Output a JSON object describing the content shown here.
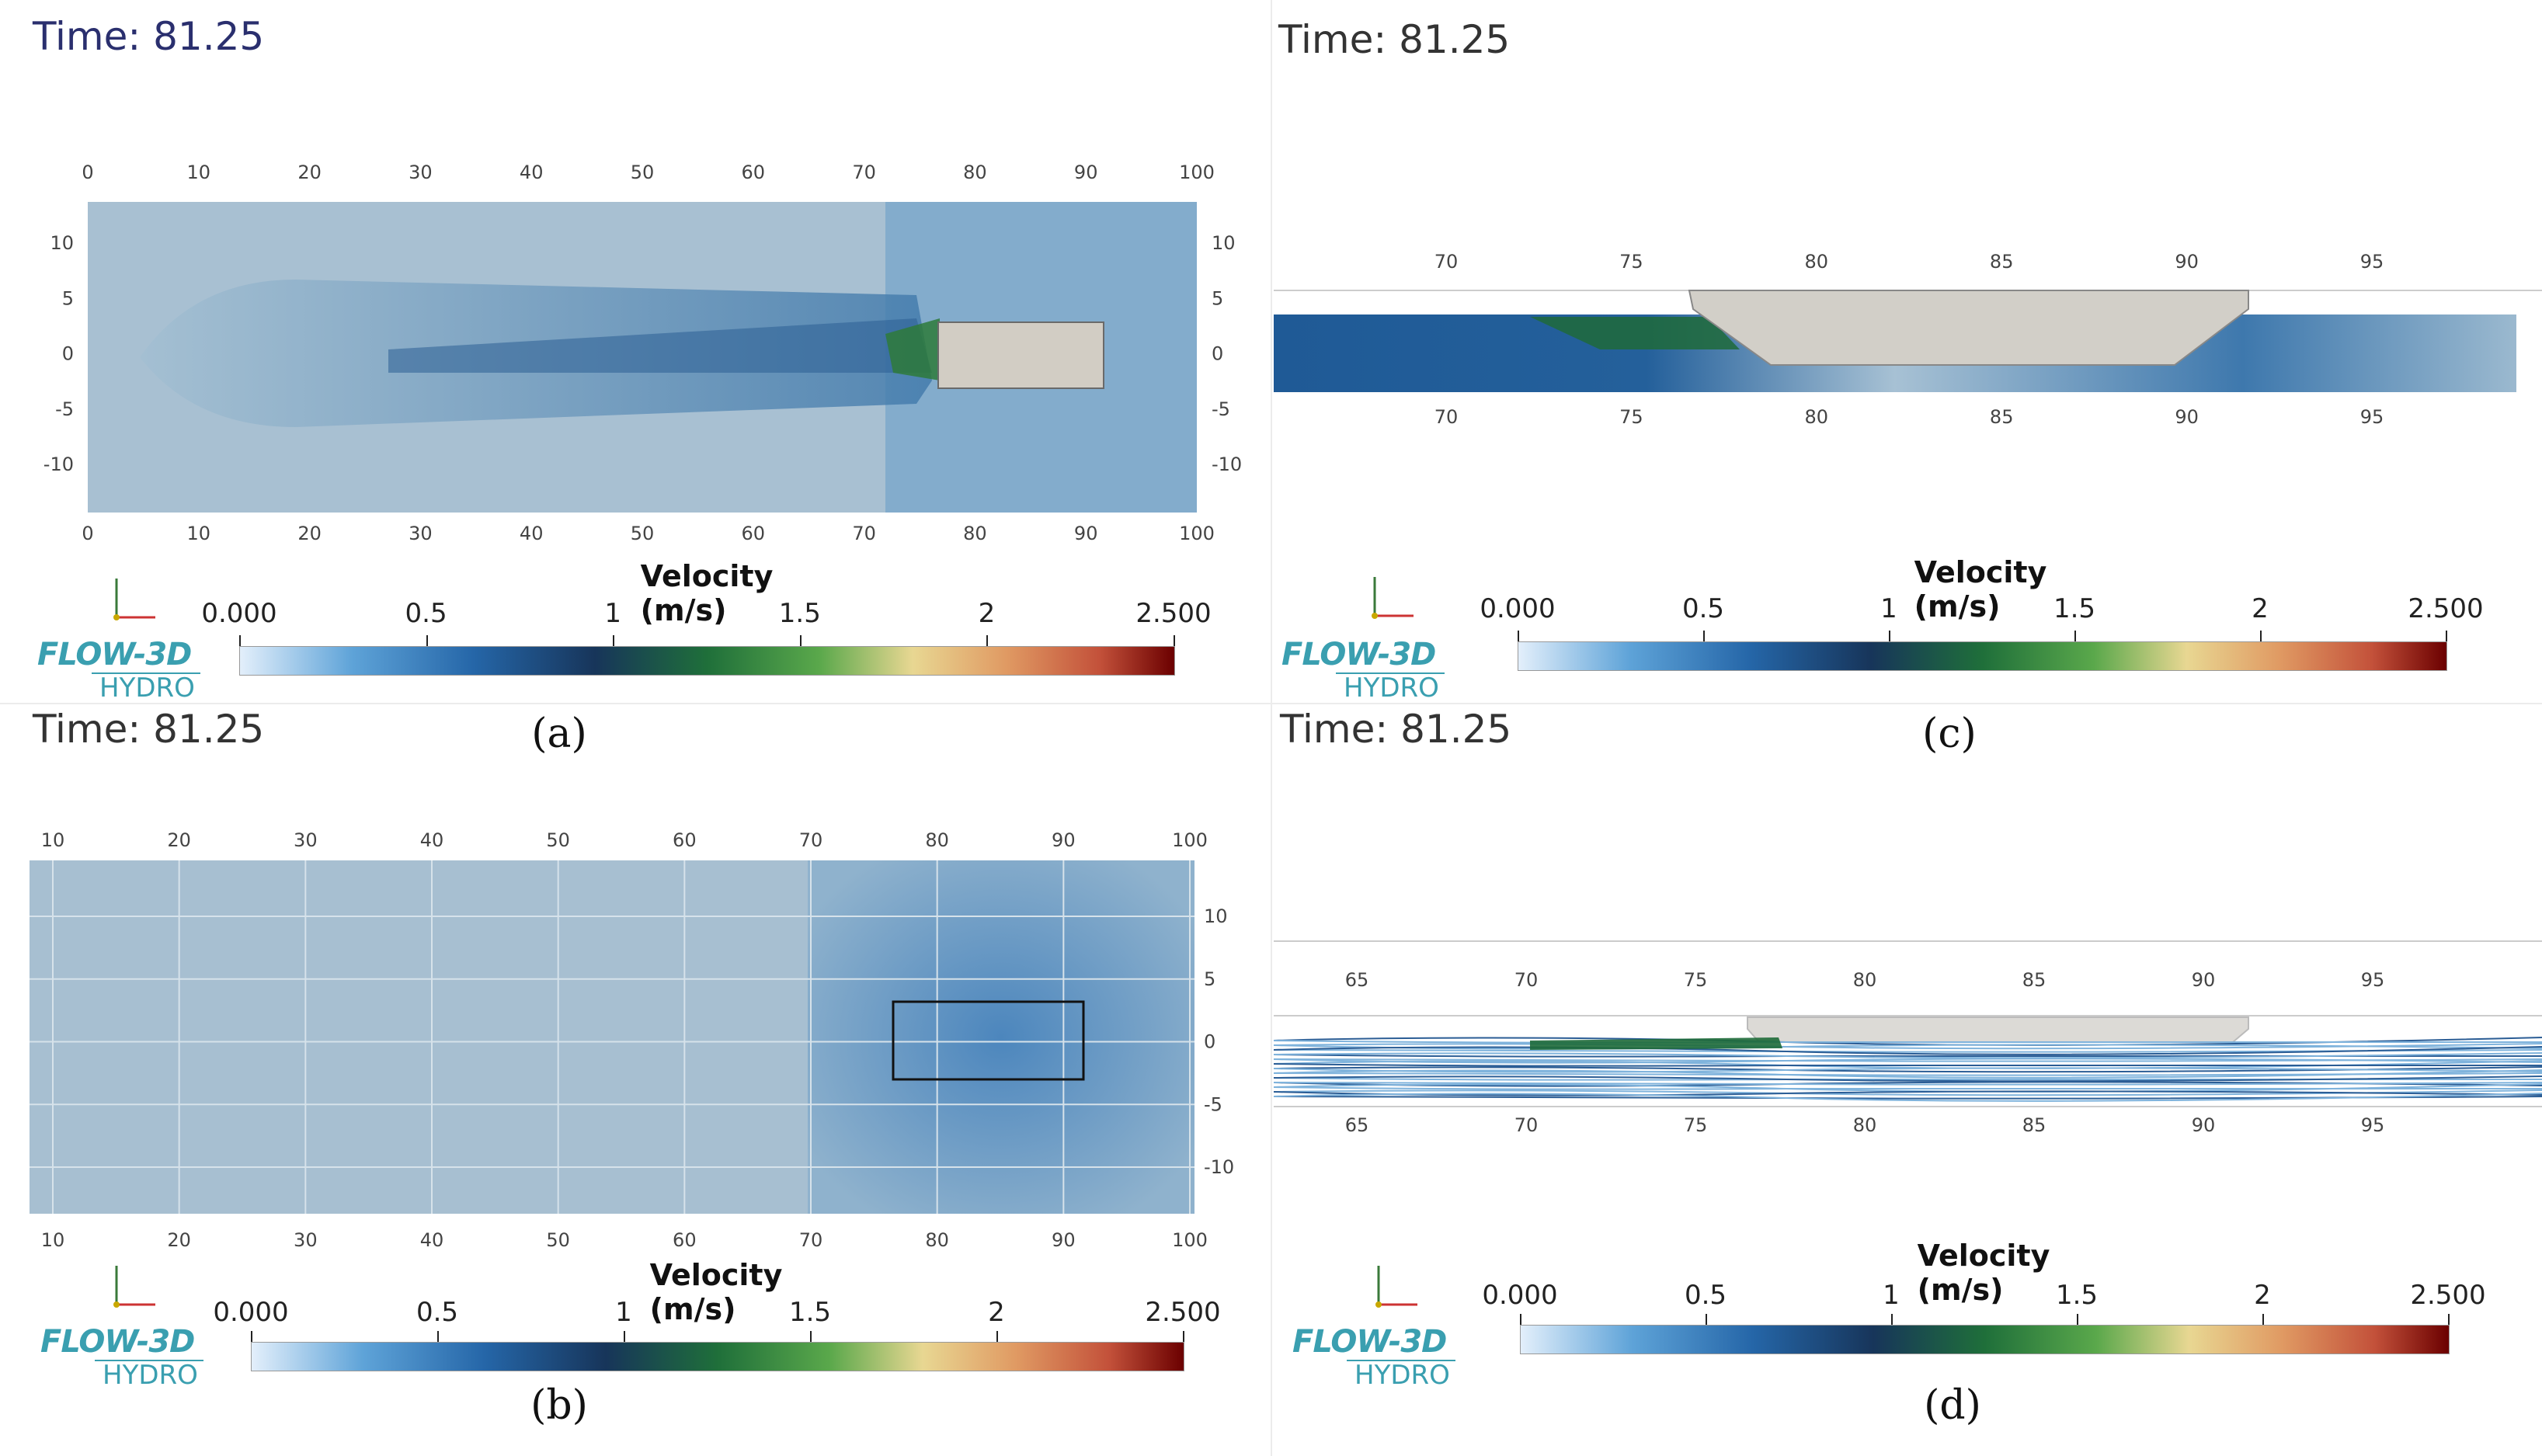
{
  "panels": {
    "a": {
      "time": "Time: 81.25",
      "caption": "(a)",
      "x_ticks": [
        "0",
        "10",
        "20",
        "30",
        "40",
        "50",
        "60",
        "70",
        "80",
        "90",
        "100"
      ],
      "y_ticks": [
        "10",
        "5",
        "0",
        "-5",
        "-10"
      ]
    },
    "b": {
      "time": "Time: 81.25",
      "caption": "(b)",
      "x_ticks": [
        "10",
        "20",
        "30",
        "40",
        "50",
        "60",
        "70",
        "80",
        "90",
        "100"
      ],
      "y_ticks": [
        "10",
        "5",
        "0",
        "-5",
        "-10"
      ]
    },
    "c": {
      "time": "Time: 81.25",
      "caption": "(c)",
      "x_ticks": [
        "70",
        "75",
        "80",
        "85",
        "90",
        "95"
      ]
    },
    "d": {
      "time": "Time: 81.25",
      "caption": "(d)",
      "x_ticks": [
        "65",
        "70",
        "75",
        "80",
        "85",
        "90",
        "95"
      ]
    }
  },
  "colorbar": {
    "title": "Velocity (m/s)",
    "ticks": [
      "0.000",
      "0.5",
      "1",
      "1.5",
      "2",
      "2.500"
    ],
    "min": 0,
    "max": 2.5,
    "colors": [
      "#e3effb",
      "#5ea3d8",
      "#2566a8",
      "#17355a",
      "#1f6f3a",
      "#5aa84b",
      "#e8d792",
      "#e09a63",
      "#c3513a",
      "#6b0000"
    ]
  },
  "brand": {
    "line1": "FLOW-3D",
    "line2": "HYDRO"
  }
}
